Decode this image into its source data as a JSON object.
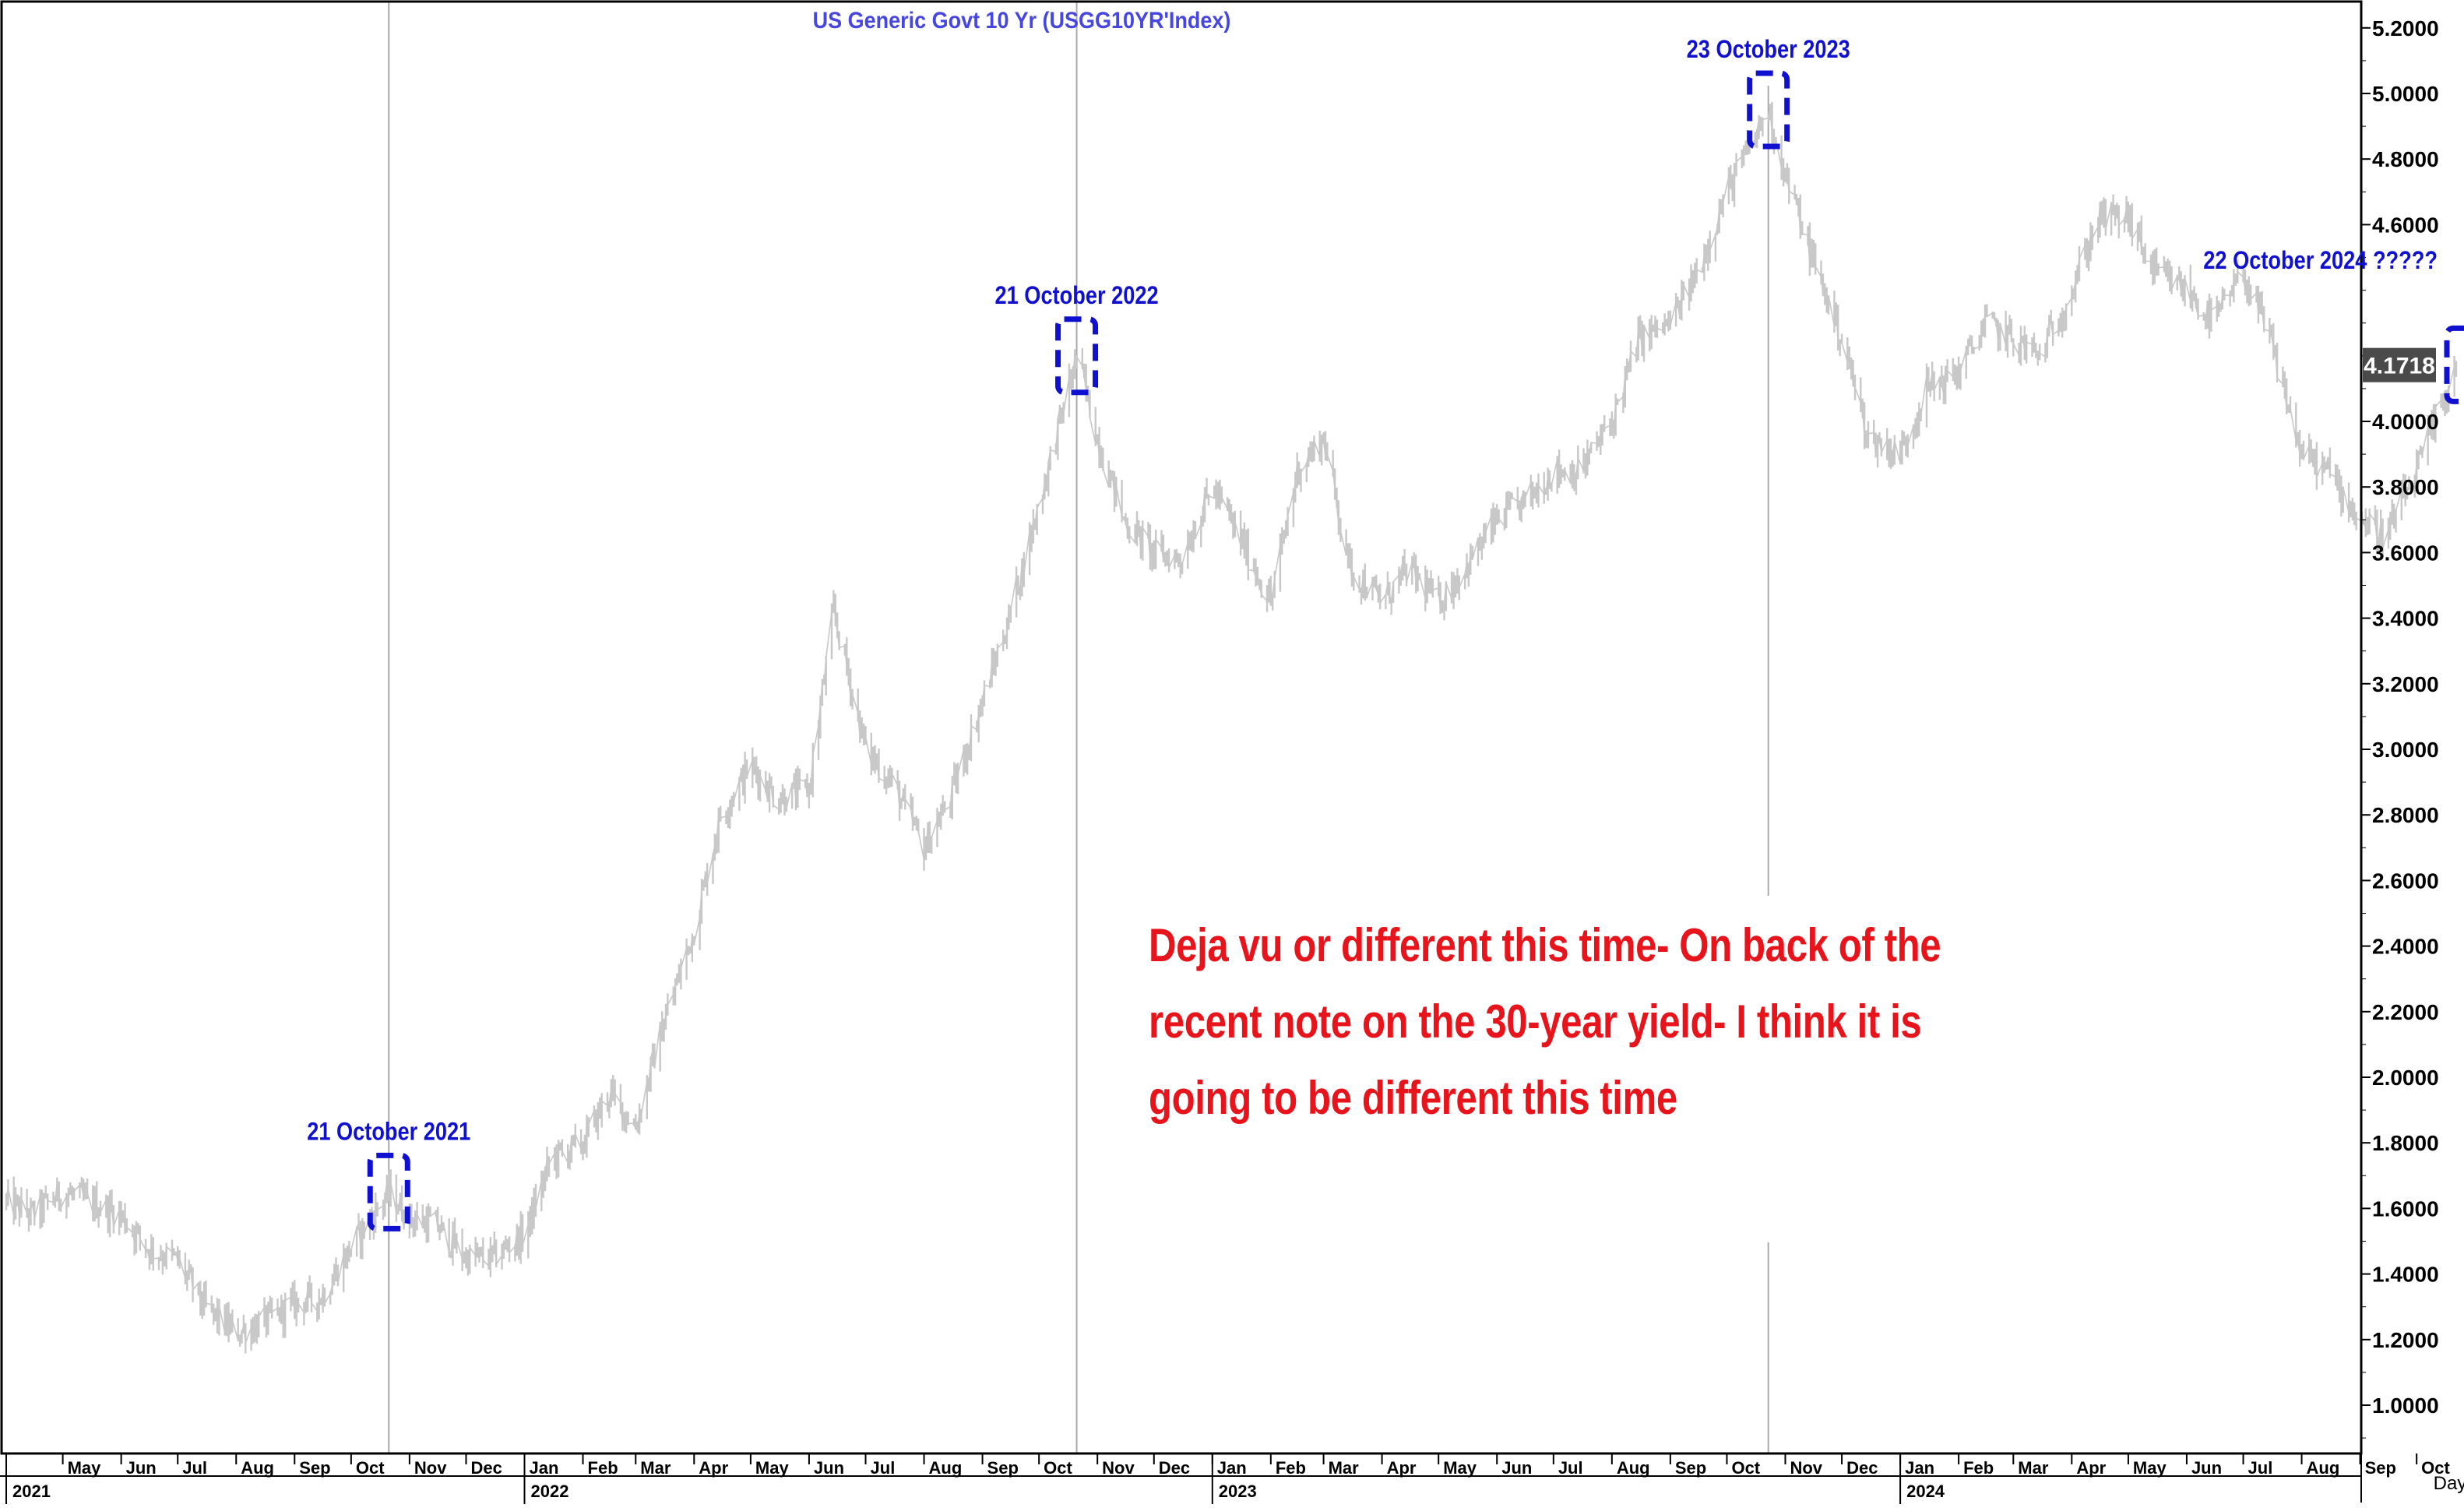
{
  "chart_data": {
    "type": "line",
    "title": "US  Generic  Govt  10  Yr  (USGG10YR'Index)",
    "xlabel": "",
    "ylabel": "",
    "frequency_label": "Day",
    "ylim": [
      0.85,
      5.3
    ],
    "y_ticks": [
      "1.0000",
      "1.2000",
      "1.4000",
      "1.6000",
      "1.8000",
      "2.0000",
      "2.2000",
      "2.4000",
      "2.6000",
      "2.8000",
      "3.0000",
      "3.2000",
      "3.4000",
      "3.6000",
      "3.8000",
      "4.0000",
      "4.6000",
      "4.8000",
      "5.0000",
      "5.2000"
    ],
    "y_tick_values": [
      1.0,
      1.2,
      1.4,
      1.6,
      1.8,
      2.0,
      2.2,
      2.4,
      2.6,
      2.8,
      3.0,
      3.2,
      3.4,
      3.6,
      3.8,
      4.0,
      4.6,
      4.8,
      5.0,
      5.2
    ],
    "last_value_label": "4.1718",
    "last_value": 4.1718,
    "month_ticks": [
      {
        "label": "May",
        "date": "2021-05-01"
      },
      {
        "label": "Jun",
        "date": "2021-06-01"
      },
      {
        "label": "Jul",
        "date": "2021-07-01"
      },
      {
        "label": "Aug",
        "date": "2021-08-01"
      },
      {
        "label": "Sep",
        "date": "2021-09-01"
      },
      {
        "label": "Oct",
        "date": "2021-10-01"
      },
      {
        "label": "Nov",
        "date": "2021-11-01"
      },
      {
        "label": "Dec",
        "date": "2021-12-01"
      },
      {
        "label": "Jan",
        "date": "2022-01-01"
      },
      {
        "label": "Feb",
        "date": "2022-02-01"
      },
      {
        "label": "Mar",
        "date": "2022-03-01"
      },
      {
        "label": "Apr",
        "date": "2022-04-01"
      },
      {
        "label": "May",
        "date": "2022-05-01"
      },
      {
        "label": "Jun",
        "date": "2022-06-01"
      },
      {
        "label": "Jul",
        "date": "2022-07-01"
      },
      {
        "label": "Aug",
        "date": "2022-08-01"
      },
      {
        "label": "Sep",
        "date": "2022-09-01"
      },
      {
        "label": "Oct",
        "date": "2022-10-01"
      },
      {
        "label": "Nov",
        "date": "2022-11-01"
      },
      {
        "label": "Dec",
        "date": "2022-12-01"
      },
      {
        "label": "Jan",
        "date": "2023-01-01"
      },
      {
        "label": "Feb",
        "date": "2023-02-01"
      },
      {
        "label": "Mar",
        "date": "2023-03-01"
      },
      {
        "label": "Apr",
        "date": "2023-04-01"
      },
      {
        "label": "May",
        "date": "2023-05-01"
      },
      {
        "label": "Jun",
        "date": "2023-06-01"
      },
      {
        "label": "Jul",
        "date": "2023-07-01"
      },
      {
        "label": "Aug",
        "date": "2023-08-01"
      },
      {
        "label": "Sep",
        "date": "2023-09-01"
      },
      {
        "label": "Oct",
        "date": "2023-10-01"
      },
      {
        "label": "Nov",
        "date": "2023-11-01"
      },
      {
        "label": "Dec",
        "date": "2023-12-01"
      },
      {
        "label": "Jan",
        "date": "2024-01-01"
      },
      {
        "label": "Feb",
        "date": "2024-02-01"
      },
      {
        "label": "Mar",
        "date": "2024-03-01"
      },
      {
        "label": "Apr",
        "date": "2024-04-01"
      },
      {
        "label": "May",
        "date": "2024-05-01"
      },
      {
        "label": "Jun",
        "date": "2024-06-01"
      },
      {
        "label": "Jul",
        "date": "2024-07-01"
      },
      {
        "label": "Aug",
        "date": "2024-08-01"
      },
      {
        "label": "Sep",
        "date": "2024-09-01"
      },
      {
        "label": "Oct",
        "date": "2024-10-01"
      }
    ],
    "year_ticks": [
      {
        "label": "2021",
        "date": "2021-04-01"
      },
      {
        "label": "2022",
        "date": "2022-01-01"
      },
      {
        "label": "2023",
        "date": "2023-01-01"
      },
      {
        "label": "2024",
        "date": "2024-01-01"
      }
    ],
    "series": [
      {
        "color": "#c8c8c8",
        "x": [
          "2021-04-01",
          "2021-04-15",
          "2021-05-01",
          "2021-05-15",
          "2021-06-01",
          "2021-06-15",
          "2021-07-01",
          "2021-07-15",
          "2021-08-01",
          "2021-08-15",
          "2021-09-01",
          "2021-09-15",
          "2021-10-01",
          "2021-10-21",
          "2021-11-01",
          "2021-11-15",
          "2021-12-01",
          "2021-12-15",
          "2022-01-01",
          "2022-01-15",
          "2022-02-01",
          "2022-02-15",
          "2022-03-01",
          "2022-03-15",
          "2022-04-01",
          "2022-04-15",
          "2022-05-01",
          "2022-05-15",
          "2022-06-01",
          "2022-06-14",
          "2022-07-01",
          "2022-07-15",
          "2022-08-01",
          "2022-08-15",
          "2022-09-01",
          "2022-09-15",
          "2022-10-01",
          "2022-10-21",
          "2022-11-01",
          "2022-11-15",
          "2022-12-01",
          "2022-12-15",
          "2023-01-01",
          "2023-01-15",
          "2023-02-01",
          "2023-02-15",
          "2023-03-01",
          "2023-03-15",
          "2023-04-01",
          "2023-04-15",
          "2023-05-01",
          "2023-05-15",
          "2023-06-01",
          "2023-06-15",
          "2023-07-01",
          "2023-07-15",
          "2023-08-01",
          "2023-08-15",
          "2023-09-01",
          "2023-09-15",
          "2023-10-01",
          "2023-10-23",
          "2023-11-01",
          "2023-11-15",
          "2023-12-01",
          "2023-12-15",
          "2024-01-01",
          "2024-01-15",
          "2024-02-01",
          "2024-02-15",
          "2024-03-01",
          "2024-03-15",
          "2024-04-01",
          "2024-04-15",
          "2024-05-01",
          "2024-05-15",
          "2024-06-01",
          "2024-06-15",
          "2024-07-01",
          "2024-07-15",
          "2024-08-01",
          "2024-08-15",
          "2024-09-01",
          "2024-09-15",
          "2024-10-01",
          "2024-10-22"
        ],
        "y": [
          1.62,
          1.58,
          1.65,
          1.62,
          1.58,
          1.48,
          1.44,
          1.3,
          1.22,
          1.25,
          1.31,
          1.33,
          1.48,
          1.65,
          1.57,
          1.55,
          1.45,
          1.45,
          1.52,
          1.75,
          1.8,
          1.95,
          1.85,
          2.15,
          2.45,
          2.8,
          2.95,
          2.85,
          2.88,
          3.42,
          3.0,
          2.9,
          2.7,
          2.85,
          3.15,
          3.4,
          3.75,
          4.2,
          3.95,
          3.7,
          3.6,
          3.58,
          3.8,
          3.65,
          3.45,
          3.85,
          3.95,
          3.55,
          3.45,
          3.55,
          3.45,
          3.55,
          3.7,
          3.75,
          3.85,
          3.85,
          4.0,
          4.25,
          4.3,
          4.45,
          4.7,
          4.95,
          4.75,
          4.5,
          4.25,
          3.95,
          3.9,
          4.1,
          4.15,
          4.3,
          4.25,
          4.2,
          4.4,
          4.62,
          4.62,
          4.45,
          4.4,
          4.3,
          4.45,
          4.25,
          3.9,
          3.85,
          3.7,
          3.65,
          3.85,
          4.17
        ]
      }
    ],
    "vertical_markers": [
      "2021-10-21",
      "2022-10-21",
      "2023-10-23"
    ],
    "annotations": [
      {
        "label": "21 October 2021",
        "date": "2021-10-21",
        "value": 1.65
      },
      {
        "label": "21 October 2022",
        "date": "2022-10-21",
        "value": 4.2
      },
      {
        "label": "23 October 2023",
        "date": "2023-10-23",
        "value": 4.95
      },
      {
        "label": "22 October 2024 ?????",
        "date": "2024-10-22",
        "value": 4.17
      }
    ],
    "note_lines": [
      "Deja vu or different this time- On back of the",
      "recent note on the 30-year yield- I think it is",
      "going to be different this time"
    ],
    "colors": {
      "series": "#c8c8c8",
      "annotation": "#1010d0",
      "title": "#4646e0",
      "note": "#e8141c",
      "marker_line": "#aaaaaa",
      "last_value_bg": "#4a4a4a"
    }
  }
}
